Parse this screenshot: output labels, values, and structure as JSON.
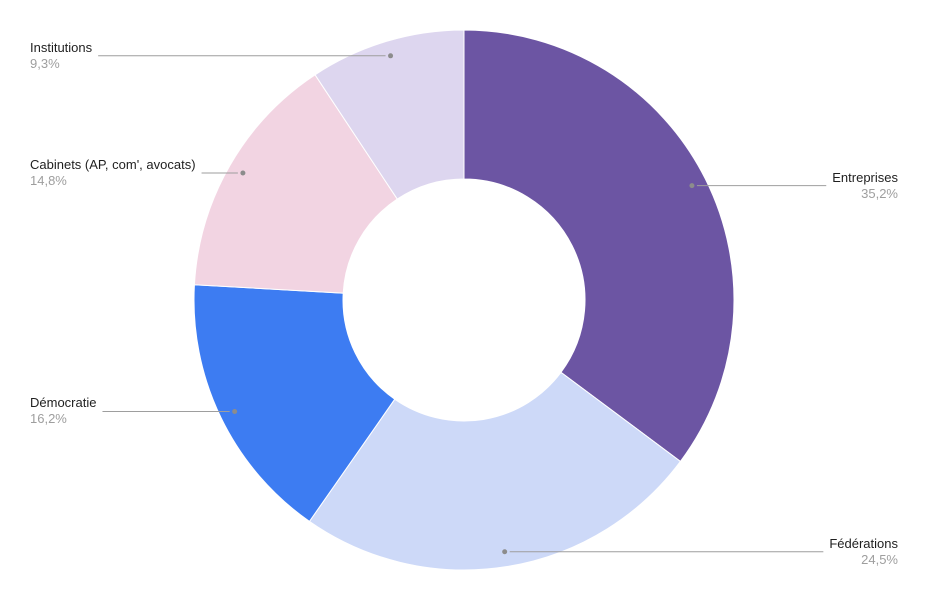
{
  "chart_data": {
    "type": "pie",
    "variant": "donut",
    "title": "",
    "direction": "clockwise",
    "start_angle_deg": 0,
    "legend_position": "labeled-callouts",
    "background": "#ffffff",
    "line_color": "#9e9e9e",
    "dot_color": "#8c8c8c",
    "label_color": "#1f1f1f",
    "pct_color": "#9e9e9e",
    "slices": [
      {
        "label": "Entreprises",
        "value": 35.2,
        "pct_text": "35,2%",
        "color": "#6c55a3"
      },
      {
        "label": "Fédérations",
        "value": 24.5,
        "pct_text": "24,5%",
        "color": "#cdd9f8"
      },
      {
        "label": "Démocratie",
        "value": 16.2,
        "pct_text": "16,2%",
        "color": "#3d7cf2"
      },
      {
        "label": "Cabinets (AP, com', avocats)",
        "value": 14.8,
        "pct_text": "14,8%",
        "color": "#f2d4e2"
      },
      {
        "label": "Institutions",
        "value": 9.3,
        "pct_text": "9,3%",
        "color": "#ddd6ef"
      }
    ]
  }
}
